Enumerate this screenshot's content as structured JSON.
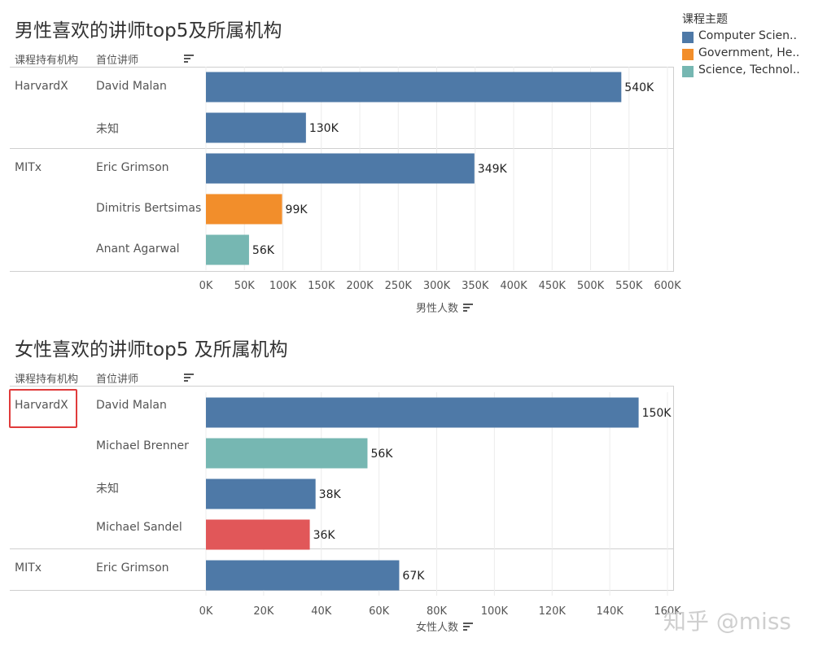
{
  "chart_data": [
    {
      "type": "bar",
      "orientation": "horizontal",
      "title": "男性喜欢的讲师top5及所属机构",
      "row_headers": [
        "课程持有机构",
        "首位讲师"
      ],
      "xlabel": "男性人数",
      "xlim": [
        0,
        600000
      ],
      "ticks": [
        0,
        50000,
        100000,
        150000,
        200000,
        250000,
        300000,
        350000,
        400000,
        450000,
        500000,
        550000,
        600000
      ],
      "tick_labels": [
        "0K",
        "50K",
        "100K",
        "150K",
        "200K",
        "250K",
        "300K",
        "350K",
        "400K",
        "450K",
        "500K",
        "550K",
        "600K"
      ],
      "grid": "vertical",
      "groups": [
        {
          "org": "HarvardX",
          "rows": [
            {
              "lecturer": "David Malan",
              "value": 540000,
              "label": "540K",
              "topic": "Computer Scien..",
              "color": "#4e79a7"
            },
            {
              "lecturer": "未知",
              "value": 130000,
              "label": "130K",
              "topic": "Computer Scien..",
              "color": "#4e79a7"
            }
          ]
        },
        {
          "org": "MITx",
          "rows": [
            {
              "lecturer": "Eric Grimson",
              "value": 349000,
              "label": "349K",
              "topic": "Computer Scien..",
              "color": "#4e79a7"
            },
            {
              "lecturer": "Dimitris Bertsimas",
              "value": 99000,
              "label": "99K",
              "topic": "Government, He..",
              "color": "#f28e2b"
            },
            {
              "lecturer": "Anant Agarwal",
              "value": 56000,
              "label": "56K",
              "topic": "Science, Technol..",
              "color": "#76b7b2"
            }
          ]
        }
      ]
    },
    {
      "type": "bar",
      "orientation": "horizontal",
      "title": "女性喜欢的讲师top5 及所属机构",
      "row_headers": [
        "课程持有机构",
        "首位讲师"
      ],
      "xlabel": "女性人数",
      "xlim": [
        0,
        160000
      ],
      "ticks": [
        0,
        20000,
        40000,
        60000,
        80000,
        100000,
        120000,
        140000,
        160000
      ],
      "tick_labels": [
        "0K",
        "20K",
        "40K",
        "60K",
        "80K",
        "100K",
        "120K",
        "140K",
        "160K"
      ],
      "grid": "vertical",
      "groups": [
        {
          "org": "HarvardX",
          "rows": [
            {
              "lecturer": "David Malan",
              "value": 150000,
              "label": "150K",
              "topic": "Computer Scien..",
              "color": "#4e79a7"
            },
            {
              "lecturer": "Michael Brenner",
              "value": 56000,
              "label": "56K",
              "topic": "Science, Technol..",
              "color": "#76b7b2"
            },
            {
              "lecturer": "未知",
              "value": 38000,
              "label": "38K",
              "topic": "Computer Scien..",
              "color": "#4e79a7"
            },
            {
              "lecturer": "Michael Sandel",
              "value": 36000,
              "label": "36K",
              "topic": "",
              "color": "#e15759"
            }
          ]
        },
        {
          "org": "MITx",
          "rows": [
            {
              "lecturer": "Eric Grimson",
              "value": 67000,
              "label": "67K",
              "topic": "Computer Scien..",
              "color": "#4e79a7"
            }
          ]
        }
      ]
    }
  ],
  "legend": {
    "title": "课程主题",
    "placement": "top-right",
    "items": [
      {
        "label": "Computer Scien..",
        "color": "#4e79a7"
      },
      {
        "label": "Government, He..",
        "color": "#f28e2b"
      },
      {
        "label": "Science, Technol..",
        "color": "#76b7b2"
      }
    ]
  },
  "watermark": "知乎 @miss"
}
